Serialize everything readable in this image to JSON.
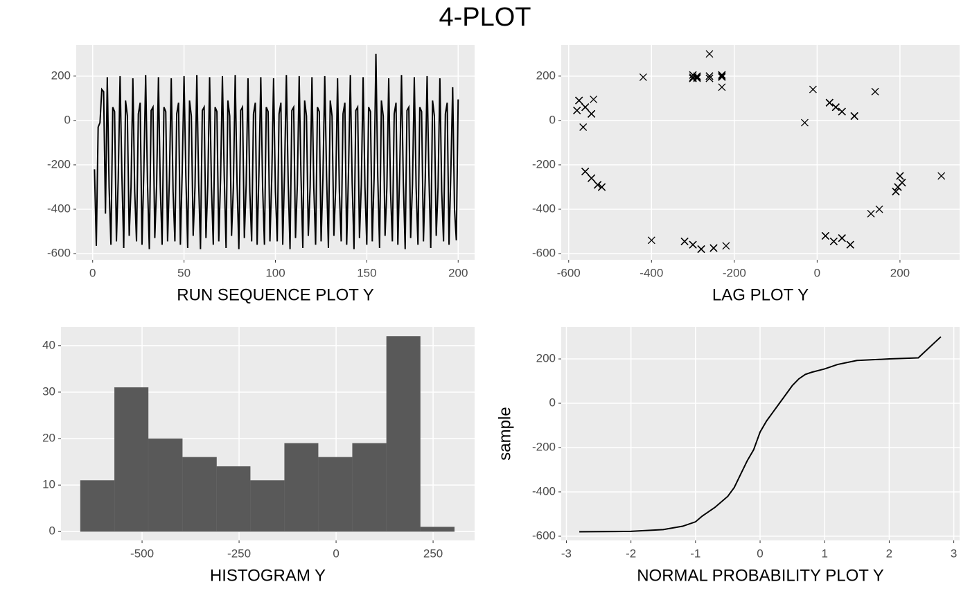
{
  "title": "4-PLOT",
  "chart_data": [
    {
      "type": "line",
      "xlabel": "RUN SEQUENCE PLOT Y",
      "color": "#000000",
      "grid": true,
      "xlim": [
        -9,
        209
      ],
      "ylim": [
        -628,
        340
      ],
      "xticks": [
        0,
        50,
        100,
        150,
        200
      ],
      "yticks": [
        -600,
        -400,
        -200,
        0,
        200
      ],
      "x": [
        1,
        2,
        3,
        4,
        5,
        6,
        7,
        8,
        9,
        10,
        11,
        12,
        13,
        14,
        15,
        16,
        17,
        18,
        19,
        20,
        21,
        22,
        23,
        24,
        25,
        26,
        27,
        28,
        29,
        30,
        31,
        32,
        33,
        34,
        35,
        36,
        37,
        38,
        39,
        40,
        41,
        42,
        43,
        44,
        45,
        46,
        47,
        48,
        49,
        50,
        51,
        52,
        53,
        54,
        55,
        56,
        57,
        58,
        59,
        60,
        61,
        62,
        63,
        64,
        65,
        66,
        67,
        68,
        69,
        70,
        71,
        72,
        73,
        74,
        75,
        76,
        77,
        78,
        79,
        80,
        81,
        82,
        83,
        84,
        85,
        86,
        87,
        88,
        89,
        90,
        91,
        92,
        93,
        94,
        95,
        96,
        97,
        98,
        99,
        100,
        101,
        102,
        103,
        104,
        105,
        106,
        107,
        108,
        109,
        110,
        111,
        112,
        113,
        114,
        115,
        116,
        117,
        118,
        119,
        120,
        121,
        122,
        123,
        124,
        125,
        126,
        127,
        128,
        129,
        130,
        131,
        132,
        133,
        134,
        135,
        136,
        137,
        138,
        139,
        140,
        141,
        142,
        143,
        144,
        145,
        146,
        147,
        148,
        149,
        150,
        151,
        152,
        153,
        154,
        155,
        156,
        157,
        158,
        159,
        160,
        161,
        162,
        163,
        164,
        165,
        166,
        167,
        168,
        169,
        170,
        171,
        172,
        173,
        174,
        175,
        176,
        177,
        178,
        179,
        180,
        181,
        182,
        183,
        184,
        185,
        186,
        187,
        188,
        189,
        190,
        191,
        192,
        193,
        194,
        195,
        196,
        197,
        198,
        199,
        200
      ],
      "values": [
        -220,
        -565,
        -30,
        -10,
        140,
        130,
        -420,
        195,
        -300,
        -560,
        60,
        40,
        -545,
        -260,
        200,
        -250,
        -575,
        90,
        20,
        -520,
        -300,
        190,
        -320,
        -545,
        30,
        80,
        -560,
        -230,
        205,
        -280,
        -580,
        45,
        60,
        -530,
        -290,
        195,
        -300,
        -560,
        60,
        40,
        -545,
        -260,
        190,
        -320,
        -545,
        30,
        80,
        -560,
        -230,
        200,
        -250,
        -575,
        90,
        20,
        -520,
        -300,
        205,
        -280,
        -580,
        45,
        60,
        -530,
        -290,
        195,
        -300,
        -560,
        60,
        40,
        -545,
        -260,
        200,
        -250,
        -575,
        90,
        20,
        -520,
        -300,
        205,
        -280,
        -580,
        45,
        60,
        -530,
        -290,
        190,
        -320,
        -545,
        30,
        80,
        -560,
        -230,
        195,
        -300,
        -560,
        60,
        40,
        -545,
        -260,
        190,
        -320,
        -545,
        30,
        80,
        -560,
        -230,
        205,
        -280,
        -580,
        45,
        60,
        -530,
        -290,
        200,
        -250,
        -575,
        90,
        20,
        -520,
        -300,
        195,
        -300,
        -560,
        60,
        40,
        -545,
        -260,
        200,
        -250,
        -575,
        90,
        20,
        -520,
        -300,
        190,
        -320,
        -545,
        30,
        80,
        -560,
        -230,
        205,
        -280,
        -580,
        45,
        60,
        -530,
        -290,
        195,
        -300,
        -560,
        60,
        40,
        -545,
        -260,
        300,
        -250,
        -575,
        90,
        20,
        -520,
        -300,
        190,
        -320,
        -545,
        30,
        80,
        -560,
        -230,
        205,
        -280,
        -580,
        45,
        60,
        -530,
        -290,
        195,
        -300,
        -560,
        60,
        40,
        -545,
        -260,
        200,
        -250,
        -575,
        90,
        20,
        -520,
        -300,
        190,
        -320,
        -545,
        30,
        80,
        -560,
        -230,
        150,
        -400,
        -540,
        95
      ]
    },
    {
      "type": "lag",
      "xlabel": "LAG PLOT Y",
      "color": "#000000",
      "grid": true,
      "xlim": [
        -618,
        344
      ],
      "ylim": [
        -628,
        340
      ],
      "xticks": [
        -600,
        -400,
        -200,
        0,
        200
      ],
      "yticks": [
        -600,
        -400,
        -200,
        0,
        200
      ]
    },
    {
      "type": "histogram",
      "xlabel": "HISTOGRAM Y",
      "color": "#595959",
      "grid": true,
      "xlim": [
        -709,
        357
      ],
      "ylim": [
        -1.9,
        44
      ],
      "xticks": [
        -500,
        -250,
        0,
        250
      ],
      "yticks": [
        0,
        10,
        20,
        30,
        40
      ],
      "bins": [
        -659,
        -571,
        -484,
        -396,
        -308,
        -221,
        -133,
        -46,
        42,
        130,
        217,
        305
      ],
      "values": [
        11,
        31,
        20,
        16,
        14,
        11,
        19,
        16,
        19,
        42,
        1
      ]
    },
    {
      "type": "line",
      "xlabel": "NORMAL PROBABILITY PLOT Y",
      "ylabel": "sample",
      "color": "#000000",
      "grid": true,
      "xlim": [
        -3.08,
        3.09
      ],
      "ylim": [
        -619,
        344
      ],
      "xticks": [
        -3,
        -2,
        -1,
        0,
        1,
        2,
        3
      ],
      "yticks": [
        -600,
        -400,
        -200,
        0,
        200
      ],
      "x": [
        -2.8,
        -2,
        -1.5,
        -1.2,
        -1,
        -0.9,
        -0.7,
        -0.5,
        -0.4,
        -0.3,
        -0.2,
        -0.1,
        0,
        0.1,
        0.2,
        0.3,
        0.4,
        0.5,
        0.6,
        0.7,
        0.8,
        1,
        1.2,
        1.5,
        2,
        2.45,
        2.8
      ],
      "values": [
        -580,
        -578,
        -570,
        -555,
        -535,
        -510,
        -470,
        -420,
        -380,
        -320,
        -260,
        -210,
        -130,
        -80,
        -40,
        0,
        40,
        80,
        110,
        130,
        140,
        155,
        175,
        193,
        200,
        205,
        300
      ]
    }
  ]
}
